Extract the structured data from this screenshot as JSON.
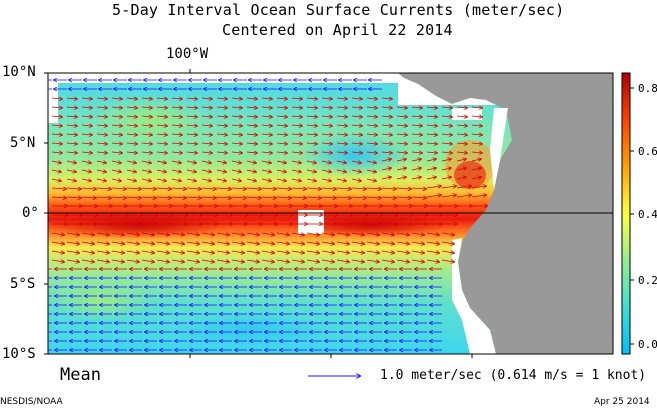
{
  "title": {
    "line1": "5-Day Interval Ocean Surface Currents (meter/sec)",
    "line2": "Centered on April 22 2014"
  },
  "axes": {
    "top_label": "100°W",
    "lat_labels": [
      "10°N",
      "5°N",
      "0°",
      "5°S",
      "10°S"
    ]
  },
  "colorbar": {
    "ticks": [
      "0.8",
      "0.6",
      "0.4",
      "0.2",
      "0.0"
    ],
    "range": [
      -0.05,
      0.85
    ],
    "colors": [
      "#00bfff",
      "#40e0d0",
      "#90ee90",
      "#ffff40",
      "#ffa500",
      "#ff4500",
      "#b00000"
    ]
  },
  "footer": {
    "mean_label": "Mean",
    "reference_arrow": "1.0 meter/sec  (0.614 m/s = 1 knot)",
    "credit": "NESDIS/NOAA",
    "date": "Apr 25 2014"
  },
  "colors": {
    "land": "#999999",
    "arrow": "#dd0000",
    "arrow_blue": "#1a1aff",
    "missing": "#ffffff"
  }
}
